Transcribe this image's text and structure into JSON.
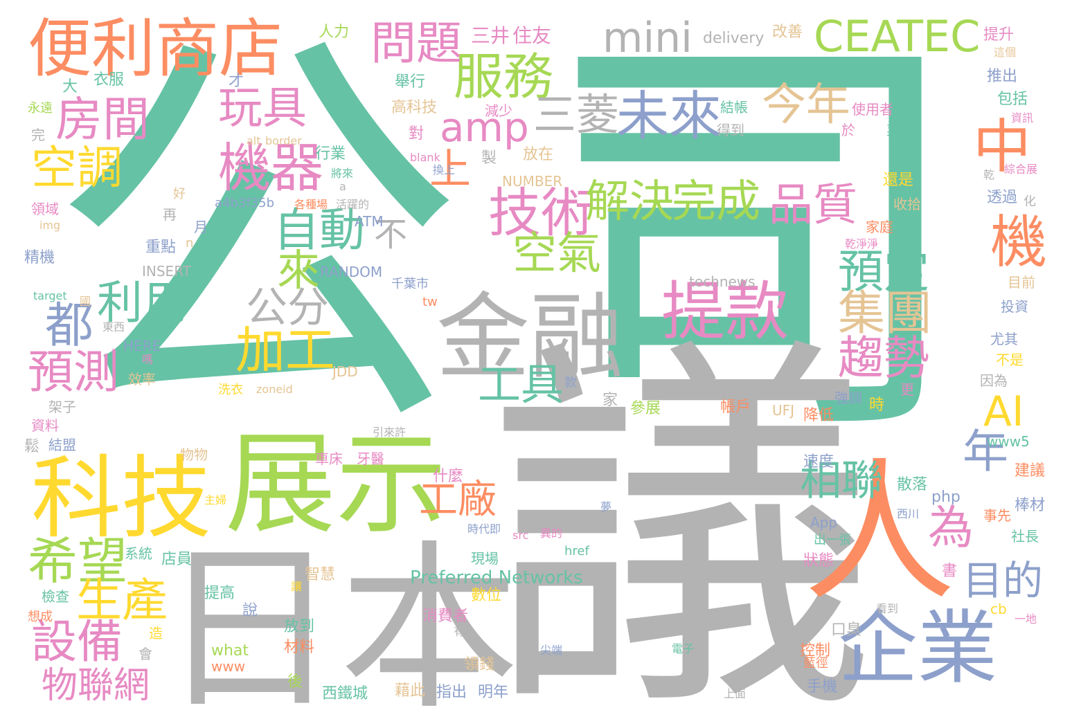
{
  "palette": {
    "teal": "#66c2a5",
    "orange": "#fc8d62",
    "blue": "#8da0cb",
    "pink": "#e78ac3",
    "green": "#a6d854",
    "yellow": "#ffd92f",
    "tan": "#e5c494",
    "gray": "#b3b3b3"
  },
  "words": [
    {
      "text": "公",
      "color": "#66c2a5"
    },
    {
      "text": "司",
      "color": "#66c2a5"
    },
    {
      "text": "議",
      "color": "#b3b3b3"
    },
    {
      "text": "日本",
      "color": "#b3b3b3"
    },
    {
      "text": "展示",
      "color": "#a6d854"
    },
    {
      "text": "科技",
      "color": "#ffd92f"
    },
    {
      "text": "人",
      "color": "#fc8d62"
    },
    {
      "text": "企業",
      "color": "#8da0cb"
    },
    {
      "text": "金融",
      "color": "#b3b3b3"
    },
    {
      "text": "便利商店",
      "color": "#fc8d62"
    },
    {
      "text": "提款",
      "color": "#e78ac3"
    },
    {
      "text": "CEATEC",
      "color": "#a6d854"
    },
    {
      "text": "mini",
      "color": "#b3b3b3"
    },
    {
      "text": "服務",
      "color": "#a6d854"
    },
    {
      "text": "問題",
      "color": "#e78ac3"
    },
    {
      "text": "機器",
      "color": "#e78ac3"
    },
    {
      "text": "技術",
      "color": "#e78ac3"
    },
    {
      "text": "未來",
      "color": "#8da0cb"
    },
    {
      "text": "三菱",
      "color": "#b3b3b3"
    },
    {
      "text": "amp",
      "color": "#e78ac3"
    },
    {
      "text": "今年",
      "color": "#e5c494"
    },
    {
      "text": "中",
      "color": "#fc8d62"
    },
    {
      "text": "房間",
      "color": "#e78ac3"
    },
    {
      "text": "玩具",
      "color": "#e78ac3"
    },
    {
      "text": "空調",
      "color": "#ffd92f"
    },
    {
      "text": "解決",
      "color": "#a6d854"
    },
    {
      "text": "完成",
      "color": "#a6d854"
    },
    {
      "text": "品質",
      "color": "#e78ac3"
    },
    {
      "text": "自動",
      "color": "#66c2a5"
    },
    {
      "text": "機",
      "color": "#fc8d62"
    },
    {
      "text": "上",
      "color": "#fc8d62"
    },
    {
      "text": "不",
      "color": "#b3b3b3"
    },
    {
      "text": "來",
      "color": "#a6d854"
    },
    {
      "text": "空氣",
      "color": "#a6d854"
    },
    {
      "text": "預定",
      "color": "#66c2a5"
    },
    {
      "text": "利用",
      "color": "#66c2a5"
    },
    {
      "text": "都",
      "color": "#8da0cb"
    },
    {
      "text": "公分",
      "color": "#b3b3b3"
    },
    {
      "text": "集團",
      "color": "#e5c494"
    },
    {
      "text": "加工",
      "color": "#ffd92f"
    },
    {
      "text": "趨勢",
      "color": "#e78ac3"
    },
    {
      "text": "預測",
      "color": "#e78ac3"
    },
    {
      "text": "工具",
      "color": "#66c2a5"
    },
    {
      "text": "AI",
      "color": "#ffd92f"
    },
    {
      "text": "年",
      "color": "#8da0cb"
    },
    {
      "text": "工廠",
      "color": "#fc8d62"
    },
    {
      "text": "相聯",
      "color": "#66c2a5"
    },
    {
      "text": "為",
      "color": "#e78ac3"
    },
    {
      "text": "希望",
      "color": "#a6d854"
    },
    {
      "text": "生產",
      "color": "#ffd92f"
    },
    {
      "text": "目的",
      "color": "#8da0cb"
    },
    {
      "text": "設備",
      "color": "#e78ac3"
    },
    {
      "text": "物聯網",
      "color": "#e78ac3"
    },
    {
      "text": "Preferred Networks",
      "color": "#66c2a5"
    },
    {
      "text": "technews",
      "color": "#b3b3b3"
    },
    {
      "text": "三井",
      "color": "#e78ac3"
    },
    {
      "text": "住友",
      "color": "#e78ac3"
    },
    {
      "text": "人力",
      "color": "#a6d854"
    },
    {
      "text": "delivery",
      "color": "#b3b3b3"
    },
    {
      "text": "改善",
      "color": "#e5c494"
    },
    {
      "text": "提升",
      "color": "#e78ac3"
    },
    {
      "text": "這個",
      "color": "#e5c494"
    },
    {
      "text": "衣服",
      "color": "#66c2a5"
    },
    {
      "text": "大",
      "color": "#66c2a5"
    },
    {
      "text": "才",
      "color": "#8da0cb"
    },
    {
      "text": "舉行",
      "color": "#66c2a5"
    },
    {
      "text": "永遠",
      "color": "#a6d854"
    },
    {
      "text": "高科技",
      "color": "#e5c494"
    },
    {
      "text": "減少",
      "color": "#e78ac3"
    },
    {
      "text": "結帳",
      "color": "#66c2a5"
    },
    {
      "text": "使用者",
      "color": "#e78ac3"
    },
    {
      "text": "推出",
      "color": "#8da0cb"
    },
    {
      "text": "包括",
      "color": "#66c2a5"
    },
    {
      "text": "資訊",
      "color": "#e78ac3"
    },
    {
      "text": "對",
      "color": "#e78ac3"
    },
    {
      "text": "得到",
      "color": "#b3b3b3"
    },
    {
      "text": "於",
      "color": "#e78ac3"
    },
    {
      "text": "業",
      "color": "#66c2a5"
    },
    {
      "text": "完",
      "color": "#b3b3b3"
    },
    {
      "text": "alt",
      "color": "#e5c494"
    },
    {
      "text": "border",
      "color": "#e5c494"
    },
    {
      "text": "行業",
      "color": "#66c2a5"
    },
    {
      "text": "blank",
      "color": "#e78ac3"
    },
    {
      "text": "製",
      "color": "#b3b3b3"
    },
    {
      "text": "放在",
      "color": "#e5c494"
    },
    {
      "text": "管理",
      "color": "#66c2a5"
    },
    {
      "text": "綜合展",
      "color": "#e78ac3"
    },
    {
      "text": "換上",
      "color": "#8da0cb"
    },
    {
      "text": "將來",
      "color": "#66c2a5"
    },
    {
      "text": "還是",
      "color": "#ffd92f"
    },
    {
      "text": "乾",
      "color": "#b3b3b3"
    },
    {
      "text": "好",
      "color": "#e5c494"
    },
    {
      "text": "a",
      "color": "#b3b3b3"
    },
    {
      "text": "NUMBER",
      "color": "#e5c494"
    },
    {
      "text": "收拾",
      "color": "#e5c494"
    },
    {
      "text": "透過",
      "color": "#8da0cb"
    },
    {
      "text": "化",
      "color": "#b3b3b3"
    },
    {
      "text": "領域",
      "color": "#e78ac3"
    },
    {
      "text": "各種場",
      "color": "#fc8d62"
    },
    {
      "text": "活躍的",
      "color": "#b3b3b3"
    },
    {
      "text": "a4b3f35b",
      "color": "#8da0cb"
    },
    {
      "text": "img",
      "color": "#e5c494"
    },
    {
      "text": "再",
      "color": "#b3b3b3"
    },
    {
      "text": "月",
      "color": "#8da0cb"
    },
    {
      "text": "ATM",
      "color": "#8da0cb"
    },
    {
      "text": "家庭",
      "color": "#fc8d62"
    },
    {
      "text": "乾淨淨",
      "color": "#e78ac3"
    },
    {
      "text": "精機",
      "color": "#8da0cb"
    },
    {
      "text": "重點",
      "color": "#8da0cb"
    },
    {
      "text": "n",
      "color": "#e5c494"
    },
    {
      "text": "INSERT",
      "color": "#b3b3b3"
    },
    {
      "text": "RANDOM",
      "color": "#8da0cb"
    },
    {
      "text": "千葉市",
      "color": "#8da0cb"
    },
    {
      "text": "目前",
      "color": "#e5c494"
    },
    {
      "text": "target",
      "color": "#66c2a5"
    },
    {
      "text": "國",
      "color": "#e5c494"
    },
    {
      "text": "tw",
      "color": "#fc8d62"
    },
    {
      "text": "投資",
      "color": "#8da0cb"
    },
    {
      "text": "東西",
      "color": "#b3b3b3"
    },
    {
      "text": "HERE",
      "color": "#8da0cb"
    },
    {
      "text": "尤其",
      "color": "#8da0cb"
    },
    {
      "text": "嗎",
      "color": "#e78ac3"
    },
    {
      "text": "不是",
      "color": "#ffd92f"
    },
    {
      "text": "效率",
      "color": "#e5c494"
    },
    {
      "text": "JDD",
      "color": "#e5c494"
    },
    {
      "text": "因為",
      "color": "#b3b3b3"
    },
    {
      "text": "洗衣",
      "color": "#ffd92f"
    },
    {
      "text": "zoneid",
      "color": "#e5c494"
    },
    {
      "text": "款",
      "color": "#8da0cb"
    },
    {
      "text": "架子",
      "color": "#b3b3b3"
    },
    {
      "text": "家",
      "color": "#b3b3b3"
    },
    {
      "text": "參展",
      "color": "#a6d854"
    },
    {
      "text": "帳戶",
      "color": "#fc8d62"
    },
    {
      "text": "UFJ",
      "color": "#e5c494"
    },
    {
      "text": "降低",
      "color": "#fc8d62"
    },
    {
      "text": "強調",
      "color": "#8da0cb"
    },
    {
      "text": "時",
      "color": "#ffd92f"
    },
    {
      "text": "更",
      "color": "#e78ac3"
    },
    {
      "text": "資料",
      "color": "#e78ac3"
    },
    {
      "text": "www5",
      "color": "#66c2a5"
    },
    {
      "text": "結盟",
      "color": "#8da0cb"
    },
    {
      "text": "鬆",
      "color": "#b3b3b3"
    },
    {
      "text": "引來許",
      "color": "#b3b3b3"
    },
    {
      "text": "物物",
      "color": "#e5c494"
    },
    {
      "text": "車床",
      "color": "#e78ac3"
    },
    {
      "text": "牙醫",
      "color": "#e78ac3"
    },
    {
      "text": "速度",
      "color": "#8da0cb"
    },
    {
      "text": "什麼",
      "color": "#e78ac3"
    },
    {
      "text": "建議",
      "color": "#fc8d62"
    },
    {
      "text": "散落",
      "color": "#66c2a5"
    },
    {
      "text": "主婦",
      "color": "#ffd92f"
    },
    {
      "text": "php",
      "color": "#8da0cb"
    },
    {
      "text": "西川",
      "color": "#8da0cb"
    },
    {
      "text": "棒材",
      "color": "#8da0cb"
    },
    {
      "text": "夢",
      "color": "#8da0cb"
    },
    {
      "text": "App",
      "color": "#8da0cb"
    },
    {
      "text": "事先",
      "color": "#fc8d62"
    },
    {
      "text": "時代即",
      "color": "#8da0cb"
    },
    {
      "text": "src",
      "color": "#e78ac3"
    },
    {
      "text": "異的",
      "color": "#e78ac3"
    },
    {
      "text": "出一張",
      "color": "#66c2a5"
    },
    {
      "text": "社長",
      "color": "#66c2a5"
    },
    {
      "text": "系統",
      "color": "#66c2a5"
    },
    {
      "text": "店員",
      "color": "#66c2a5"
    },
    {
      "text": "現場",
      "color": "#66c2a5"
    },
    {
      "text": "href",
      "color": "#66c2a5"
    },
    {
      "text": "狀態",
      "color": "#e78ac3"
    },
    {
      "text": "書",
      "color": "#e78ac3"
    },
    {
      "text": "智慧",
      "color": "#e5c494"
    },
    {
      "text": "ck",
      "color": "#fc8d62"
    },
    {
      "text": "檢查",
      "color": "#66c2a5"
    },
    {
      "text": "提高",
      "color": "#66c2a5"
    },
    {
      "text": "數位",
      "color": "#ffd92f"
    },
    {
      "text": "讓",
      "color": "#ffd92f"
    },
    {
      "text": "想成",
      "color": "#fc8d62"
    },
    {
      "text": "說",
      "color": "#8da0cb"
    },
    {
      "text": "消費者",
      "color": "#e78ac3"
    },
    {
      "text": "有人",
      "color": "#b3b3b3"
    },
    {
      "text": "看到",
      "color": "#b3b3b3"
    },
    {
      "text": "cb",
      "color": "#ffd92f"
    },
    {
      "text": "一地",
      "color": "#e78ac3"
    },
    {
      "text": "放到",
      "color": "#66c2a5"
    },
    {
      "text": "造",
      "color": "#ffd92f"
    },
    {
      "text": "口臭",
      "color": "#b3b3b3"
    },
    {
      "text": "what",
      "color": "#a6d854"
    },
    {
      "text": "www",
      "color": "#fc8d62"
    },
    {
      "text": "會",
      "color": "#b3b3b3"
    },
    {
      "text": "材料",
      "color": "#fc8d62"
    },
    {
      "text": "尖端",
      "color": "#8da0cb"
    },
    {
      "text": "電子",
      "color": "#66c2a5"
    },
    {
      "text": "控制",
      "color": "#fc8d62"
    },
    {
      "text": "藍徑",
      "color": "#fc8d62"
    },
    {
      "text": "領錢",
      "color": "#e5c494"
    },
    {
      "text": "後",
      "color": "#a6d854"
    },
    {
      "text": "藉此",
      "color": "#e5c494"
    },
    {
      "text": "指出",
      "color": "#8da0cb"
    },
    {
      "text": "明年",
      "color": "#8da0cb"
    },
    {
      "text": "手機",
      "color": "#8da0cb"
    },
    {
      "text": "上面",
      "color": "#b3b3b3"
    },
    {
      "text": "西鐵城",
      "color": "#66c2a5"
    }
  ]
}
